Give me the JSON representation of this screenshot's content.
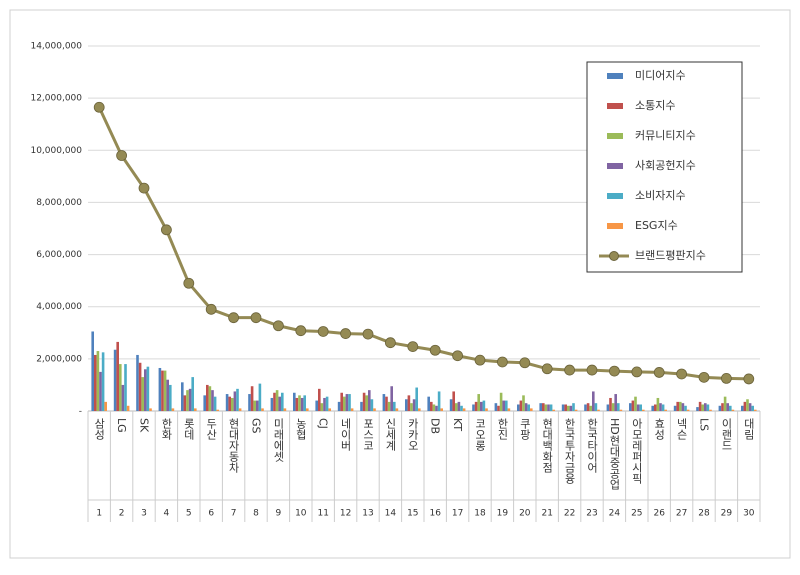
{
  "chart_data": {
    "type": "bar-line",
    "categories": [
      "삼성",
      "LG",
      "SK",
      "한화",
      "롯데",
      "두산",
      "현대자동차",
      "GS",
      "미래에셋",
      "농협",
      "CJ",
      "네이버",
      "포스코",
      "신세계",
      "카카오",
      "DB",
      "KT",
      "코오롱",
      "한진",
      "쿠팡",
      "현대백화점",
      "한국투자금융",
      "한국타이어",
      "HD현대중공업",
      "아모레퍼시픽",
      "효성",
      "넥슨",
      "LS",
      "이랜드",
      "대림"
    ],
    "ranks": [
      1,
      2,
      3,
      4,
      5,
      6,
      7,
      8,
      9,
      10,
      11,
      12,
      13,
      14,
      15,
      16,
      17,
      18,
      19,
      20,
      21,
      22,
      23,
      24,
      25,
      26,
      27,
      28,
      29,
      30
    ],
    "series": [
      {
        "name": "미디어지수",
        "color": "#4f81bd",
        "values": [
          3050000,
          2350000,
          2150000,
          1650000,
          1100000,
          600000,
          650000,
          650000,
          500000,
          700000,
          400000,
          350000,
          350000,
          650000,
          450000,
          550000,
          450000,
          250000,
          300000,
          250000,
          300000,
          250000,
          250000,
          250000,
          300000,
          200000,
          200000,
          150000,
          200000,
          200000
        ]
      },
      {
        "name": "소통지수",
        "color": "#c0504d",
        "values": [
          2150000,
          2650000,
          1850000,
          1550000,
          600000,
          1000000,
          550000,
          950000,
          700000,
          500000,
          850000,
          700000,
          700000,
          550000,
          600000,
          350000,
          750000,
          350000,
          200000,
          400000,
          300000,
          250000,
          300000,
          500000,
          400000,
          250000,
          350000,
          350000,
          300000,
          350000
        ]
      },
      {
        "name": "커뮤니티지수",
        "color": "#9bbb59",
        "values": [
          2300000,
          1800000,
          1300000,
          1550000,
          800000,
          950000,
          500000,
          400000,
          800000,
          600000,
          300000,
          550000,
          600000,
          350000,
          300000,
          250000,
          300000,
          650000,
          700000,
          600000,
          250000,
          200000,
          200000,
          300000,
          550000,
          500000,
          350000,
          250000,
          550000,
          450000
        ]
      },
      {
        "name": "사회공헌지수",
        "color": "#8064a2",
        "values": [
          1500000,
          1000000,
          1600000,
          1200000,
          850000,
          800000,
          750000,
          400000,
          550000,
          500000,
          500000,
          650000,
          800000,
          950000,
          450000,
          200000,
          350000,
          350000,
          400000,
          300000,
          250000,
          200000,
          750000,
          650000,
          250000,
          300000,
          300000,
          300000,
          300000,
          300000
        ]
      },
      {
        "name": "소비자지수",
        "color": "#4bacc6",
        "values": [
          2250000,
          1800000,
          1700000,
          1000000,
          1300000,
          550000,
          850000,
          1050000,
          700000,
          600000,
          550000,
          650000,
          450000,
          350000,
          900000,
          750000,
          200000,
          400000,
          400000,
          250000,
          250000,
          300000,
          300000,
          300000,
          250000,
          250000,
          200000,
          250000,
          200000,
          200000
        ]
      },
      {
        "name": "ESG지수",
        "color": "#f79646",
        "values": [
          350000,
          200000,
          100000,
          100000,
          100000,
          50000,
          100000,
          100000,
          100000,
          100000,
          100000,
          100000,
          100000,
          100000,
          100000,
          100000,
          100000,
          100000,
          100000,
          100000,
          50000,
          50000,
          50000,
          50000,
          50000,
          50000,
          50000,
          50000,
          50000,
          50000
        ]
      },
      {
        "name": "브랜드평판지수",
        "color": "#948a54",
        "line": true,
        "values": [
          11650000,
          9800000,
          8550000,
          6950000,
          4900000,
          3900000,
          3580000,
          3580000,
          3270000,
          3080000,
          3050000,
          2970000,
          2950000,
          2620000,
          2470000,
          2330000,
          2120000,
          1950000,
          1880000,
          1850000,
          1620000,
          1570000,
          1570000,
          1530000,
          1500000,
          1480000,
          1420000,
          1290000,
          1250000,
          1230000
        ]
      }
    ],
    "ylim": [
      0,
      14000000
    ],
    "yticks": [
      {
        "value": 0,
        "label": "-"
      },
      {
        "value": 2000000,
        "label": "2,000,000"
      },
      {
        "value": 4000000,
        "label": "4,000,000"
      },
      {
        "value": 6000000,
        "label": "6,000,000"
      },
      {
        "value": 8000000,
        "label": "8,000,000"
      },
      {
        "value": 10000000,
        "label": "10,000,000"
      },
      {
        "value": 12000000,
        "label": "12,000,000"
      },
      {
        "value": 14000000,
        "label": "14,000,000"
      }
    ],
    "grid": true,
    "legend": "top-right"
  }
}
